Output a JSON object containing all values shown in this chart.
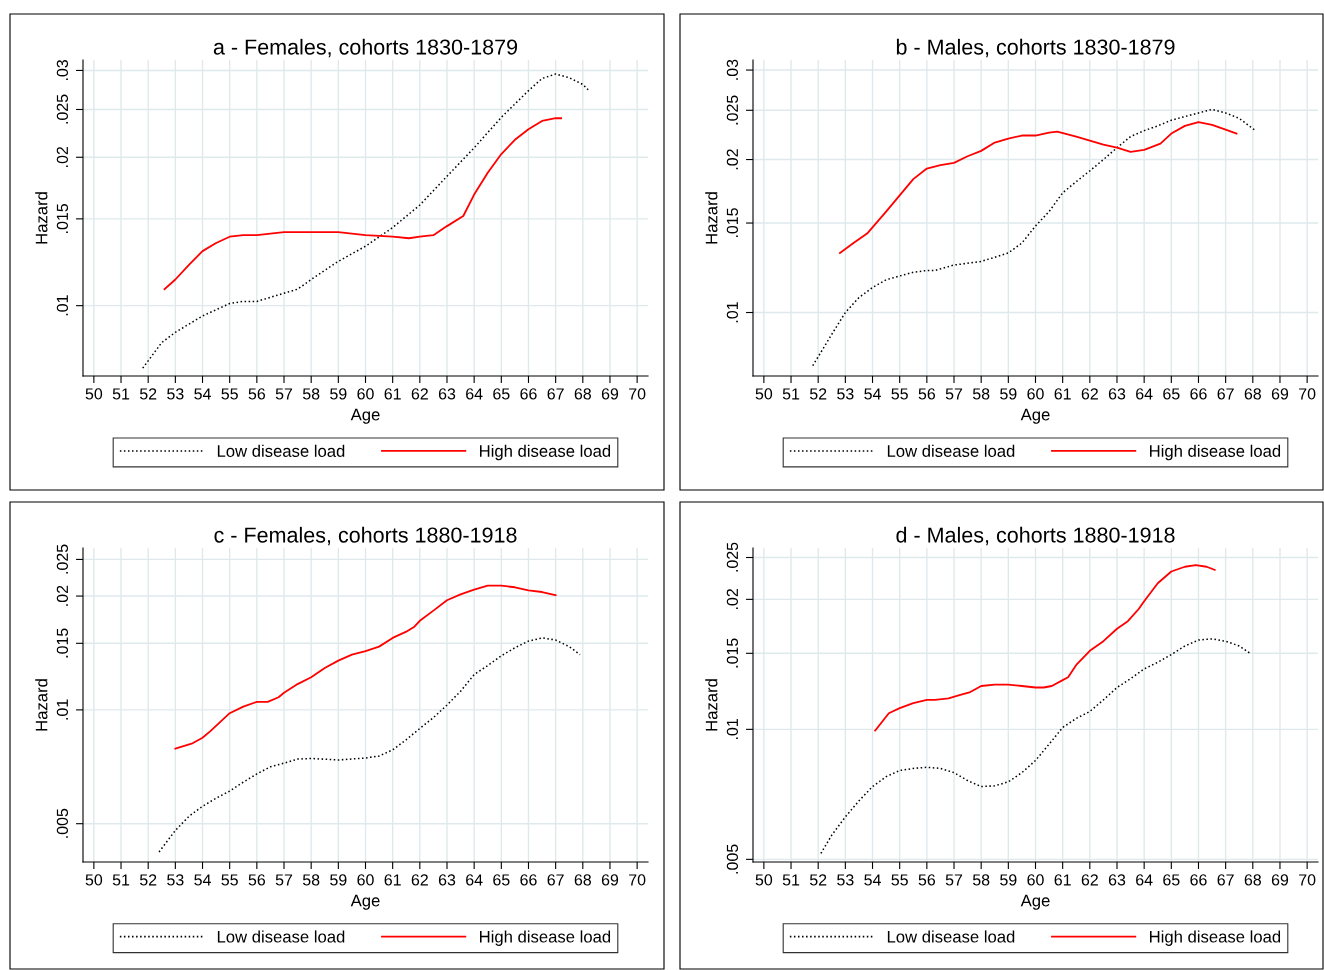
{
  "chart_data": [
    {
      "type": "line",
      "title": "a - Females, cohorts 1830-1879",
      "xlabel": "Age",
      "ylabel": "Hazard",
      "log": "y",
      "grid": true,
      "legend": "bottom",
      "xlim": [
        49.6,
        70.4
      ],
      "xticks": [
        50,
        51,
        52,
        53,
        54,
        55,
        56,
        57,
        58,
        59,
        60,
        61,
        62,
        63,
        64,
        65,
        66,
        67,
        68,
        69,
        70
      ],
      "ylim": [
        0.0072,
        0.0315
      ],
      "yticks": [
        {
          "value": 0.01,
          "label": ".01"
        },
        {
          "value": 0.015,
          "label": ".015"
        },
        {
          "value": 0.02,
          "label": ".02"
        },
        {
          "value": 0.025,
          "label": ".025"
        },
        {
          "value": 0.03,
          "label": ".03"
        }
      ],
      "series": [
        {
          "name": "Low disease load",
          "color": "#000000",
          "line_style": "dotted",
          "x": [
            51.8,
            52.5,
            53,
            54,
            55,
            55.5,
            56,
            57,
            57.5,
            58,
            59,
            60,
            61,
            62,
            63,
            64,
            65,
            66,
            66.5,
            67,
            67.5,
            68,
            68.2
          ],
          "values": [
            0.00747,
            0.00842,
            0.00883,
            0.00953,
            0.0101,
            0.0102,
            0.0102,
            0.0106,
            0.0108,
            0.0113,
            0.0123,
            0.0132,
            0.0144,
            0.016,
            0.0183,
            0.0209,
            0.0241,
            0.0273,
            0.0289,
            0.0295,
            0.029,
            0.0281,
            0.0274
          ]
        },
        {
          "name": "High disease load",
          "color": "#ff0000",
          "line_style": "solid",
          "x": [
            52.6,
            53,
            53.5,
            54,
            54.5,
            55,
            55.5,
            56,
            57,
            58,
            59,
            60,
            61,
            61.6,
            62,
            62.5,
            63,
            63.6,
            64,
            64.5,
            65,
            65.5,
            66,
            66.5,
            67,
            67.2
          ],
          "values": [
            0.0108,
            0.0113,
            0.0121,
            0.0129,
            0.0134,
            0.0138,
            0.0139,
            0.0139,
            0.0141,
            0.0141,
            0.0141,
            0.0139,
            0.0138,
            0.0137,
            0.0138,
            0.0139,
            0.0145,
            0.0152,
            0.0168,
            0.0186,
            0.0203,
            0.0217,
            0.0228,
            0.0237,
            0.024,
            0.024
          ]
        }
      ]
    },
    {
      "type": "line",
      "title": "b - Males, cohorts 1830-1879",
      "xlabel": "Age",
      "ylabel": "Hazard",
      "log": "y",
      "grid": true,
      "legend": "bottom",
      "xlim": [
        49.6,
        70.4
      ],
      "xticks": [
        50,
        51,
        52,
        53,
        54,
        55,
        56,
        57,
        58,
        59,
        60,
        61,
        62,
        63,
        64,
        65,
        66,
        67,
        68,
        69,
        70
      ],
      "ylim": [
        0.0075,
        0.0314
      ],
      "yticks": [
        {
          "value": 0.01,
          "label": ".01"
        },
        {
          "value": 0.015,
          "label": ".015"
        },
        {
          "value": 0.02,
          "label": ".02"
        },
        {
          "value": 0.025,
          "label": ".025"
        },
        {
          "value": 0.03,
          "label": ".03"
        }
      ],
      "series": [
        {
          "name": "Low disease load",
          "color": "#000000",
          "line_style": "dotted",
          "x": [
            51.8,
            52.5,
            53,
            53.5,
            54,
            54.5,
            55,
            55.5,
            56,
            56.3,
            57,
            58,
            59,
            59.5,
            60,
            60.5,
            61,
            61.5,
            62,
            62.5,
            63,
            63.5,
            64,
            64.5,
            65,
            65.5,
            66,
            66.5,
            67,
            67.5,
            68.1
          ],
          "values": [
            0.00786,
            0.00906,
            0.01,
            0.0107,
            0.0112,
            0.0116,
            0.0118,
            0.012,
            0.0121,
            0.0121,
            0.0124,
            0.0126,
            0.0131,
            0.0137,
            0.0148,
            0.0158,
            0.0172,
            0.0181,
            0.019,
            0.02,
            0.0211,
            0.0222,
            0.0228,
            0.0233,
            0.0239,
            0.0243,
            0.0247,
            0.0251,
            0.0247,
            0.0241,
            0.0228
          ]
        },
        {
          "name": "High disease load",
          "color": "#ff0000",
          "line_style": "solid",
          "x": [
            52.8,
            53.3,
            53.8,
            54.5,
            55,
            55.5,
            56,
            56.5,
            57,
            57.5,
            58,
            58.5,
            59,
            59.5,
            60,
            60.5,
            60.8,
            61.5,
            62,
            62.5,
            63,
            63.5,
            64,
            64.6,
            65,
            65.5,
            66,
            66.5,
            67,
            67.4
          ],
          "values": [
            0.0131,
            0.0137,
            0.0143,
            0.0158,
            0.017,
            0.0183,
            0.0192,
            0.0195,
            0.0197,
            0.0203,
            0.0208,
            0.0216,
            0.022,
            0.0223,
            0.0223,
            0.0226,
            0.0227,
            0.0222,
            0.0218,
            0.0214,
            0.0211,
            0.0207,
            0.0209,
            0.0215,
            0.0225,
            0.0233,
            0.0237,
            0.0234,
            0.0229,
            0.0225
          ]
        }
      ]
    },
    {
      "type": "line",
      "title": "c - Females, cohorts 1880-1918",
      "xlabel": "Age",
      "ylabel": "Hazard",
      "log": "y",
      "grid": true,
      "legend": "bottom",
      "xlim": [
        49.6,
        70.4
      ],
      "xticks": [
        50,
        51,
        52,
        53,
        54,
        55,
        56,
        57,
        58,
        59,
        60,
        61,
        62,
        63,
        64,
        65,
        66,
        67,
        68,
        69,
        70
      ],
      "ylim": [
        0.00396,
        0.0268
      ],
      "yticks": [
        {
          "value": 0.005,
          "label": ".005"
        },
        {
          "value": 0.01,
          "label": ".01"
        },
        {
          "value": 0.015,
          "label": ".015"
        },
        {
          "value": 0.02,
          "label": ".02"
        },
        {
          "value": 0.025,
          "label": ".025"
        }
      ],
      "series": [
        {
          "name": "Low disease load",
          "color": "#000000",
          "line_style": "dotted",
          "x": [
            52.4,
            53,
            53.5,
            54,
            54.5,
            55,
            55.5,
            56,
            56.5,
            57,
            57.5,
            58,
            59,
            60,
            60.5,
            61,
            61.5,
            62,
            62.5,
            63,
            63.5,
            64,
            64.5,
            65,
            65.5,
            66,
            66.5,
            67,
            67.5,
            67.9
          ],
          "values": [
            0.00421,
            0.0048,
            0.00523,
            0.00556,
            0.00584,
            0.0061,
            0.00644,
            0.00677,
            0.00707,
            0.00723,
            0.00741,
            0.00744,
            0.00737,
            0.00746,
            0.00755,
            0.00784,
            0.00834,
            0.00893,
            0.00954,
            0.0103,
            0.0112,
            0.0124,
            0.0131,
            0.0139,
            0.0146,
            0.0152,
            0.0155,
            0.0153,
            0.0147,
            0.014
          ]
        },
        {
          "name": "High disease load",
          "color": "#ff0000",
          "line_style": "solid",
          "x": [
            53,
            53.6,
            54,
            54.3,
            55,
            55.5,
            56,
            56.4,
            56.8,
            57,
            57.5,
            58,
            58.5,
            59,
            59.5,
            60,
            60.5,
            61,
            61.5,
            61.8,
            62,
            62.5,
            63,
            63.5,
            64,
            64.5,
            65,
            65.5,
            66,
            66.5,
            67
          ],
          "values": [
            0.0079,
            0.00814,
            0.00844,
            0.0088,
            0.0098,
            0.0102,
            0.0105,
            0.0105,
            0.0108,
            0.0111,
            0.0117,
            0.0122,
            0.0129,
            0.0135,
            0.014,
            0.0143,
            0.0147,
            0.0155,
            0.0161,
            0.0166,
            0.0172,
            0.0183,
            0.0195,
            0.0202,
            0.0208,
            0.0213,
            0.0213,
            0.0211,
            0.0207,
            0.0205,
            0.0201
          ]
        }
      ]
    },
    {
      "type": "line",
      "title": "d - Males, cohorts 1880-1918",
      "xlabel": "Age",
      "ylabel": "Hazard",
      "log": "y",
      "grid": true,
      "legend": "bottom",
      "xlim": [
        49.6,
        70.4
      ],
      "xticks": [
        50,
        51,
        52,
        53,
        54,
        55,
        56,
        57,
        58,
        59,
        60,
        61,
        62,
        63,
        64,
        65,
        66,
        67,
        68,
        69,
        70
      ],
      "ylim": [
        0.00493,
        0.0263
      ],
      "yticks": [
        {
          "value": 0.005,
          "label": ".005"
        },
        {
          "value": 0.01,
          "label": ".01"
        },
        {
          "value": 0.015,
          "label": ".015"
        },
        {
          "value": 0.02,
          "label": ".02"
        },
        {
          "value": 0.025,
          "label": ".025"
        }
      ],
      "series": [
        {
          "name": "Low disease load",
          "color": "#000000",
          "line_style": "dotted",
          "x": [
            52.1,
            52.5,
            53,
            53.5,
            54,
            54.5,
            55,
            55.5,
            56,
            56.5,
            57,
            57.5,
            58,
            58.5,
            59,
            59.5,
            60,
            60.5,
            61,
            61.5,
            62,
            62.5,
            63,
            63.5,
            64,
            64.5,
            65,
            65.5,
            66,
            66.5,
            67,
            67.5,
            67.9
          ],
          "values": [
            0.00516,
            0.00569,
            0.00627,
            0.00683,
            0.00737,
            0.00777,
            0.00803,
            0.00812,
            0.00817,
            0.00812,
            0.00794,
            0.00761,
            0.00737,
            0.0074,
            0.00756,
            0.00794,
            0.00847,
            0.00924,
            0.0101,
            0.0106,
            0.011,
            0.0117,
            0.0125,
            0.0131,
            0.0138,
            0.0143,
            0.0149,
            0.0156,
            0.0161,
            0.0162,
            0.016,
            0.0156,
            0.015
          ]
        },
        {
          "name": "High disease load",
          "color": "#ff0000",
          "line_style": "solid",
          "x": [
            54.1,
            54.6,
            55,
            55.5,
            56,
            56.3,
            56.8,
            57.2,
            57.6,
            58,
            58.5,
            59,
            59.5,
            60,
            60.3,
            60.6,
            61,
            61.2,
            61.5,
            62,
            62.5,
            63,
            63.4,
            63.8,
            64,
            64.5,
            65,
            65.5,
            65.9,
            66.3,
            66.6
          ],
          "values": [
            0.00994,
            0.0109,
            0.0112,
            0.0115,
            0.0117,
            0.0117,
            0.0118,
            0.012,
            0.0122,
            0.0126,
            0.0127,
            0.0127,
            0.0126,
            0.0125,
            0.0125,
            0.0126,
            0.013,
            0.0132,
            0.0141,
            0.0152,
            0.016,
            0.0171,
            0.0178,
            0.019,
            0.0198,
            0.0218,
            0.0232,
            0.0238,
            0.024,
            0.0238,
            0.0234
          ]
        }
      ]
    }
  ]
}
